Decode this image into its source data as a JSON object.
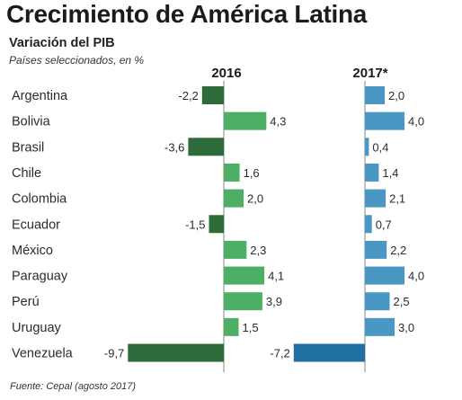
{
  "title": "Crecimiento de América Latina",
  "subtitle": "Variación del PIB",
  "unit_note": "Países seleccionados, en %",
  "source": "Fuente: Cepal (agosto 2017)",
  "chart_data": {
    "type": "bar",
    "orientation": "horizontal",
    "categories": [
      "Argentina",
      "Bolivia",
      "Brasil",
      "Chile",
      "Colombia",
      "Ecuador",
      "México",
      "Paraguay",
      "Perú",
      "Uruguay",
      "Venezuela"
    ],
    "series": [
      {
        "name": "2016",
        "values": [
          -2.2,
          4.3,
          -3.6,
          1.6,
          2.0,
          -1.5,
          2.3,
          4.1,
          3.9,
          1.5,
          -9.7
        ],
        "labels": [
          "-2,2",
          "4,3",
          "-3,6",
          "1,6",
          "2,0",
          "-1,5",
          "2,3",
          "4,1",
          "3,9",
          "1,5",
          "-9,7"
        ],
        "color_positive": "#4caf63",
        "color_negative": "#2e6b3a"
      },
      {
        "name": "2017*",
        "values": [
          2.0,
          4.0,
          0.4,
          1.4,
          2.1,
          0.7,
          2.2,
          4.0,
          2.5,
          3.0,
          -7.2
        ],
        "labels": [
          "2,0",
          "4,0",
          "0,4",
          "1,4",
          "2,1",
          "0,7",
          "2,2",
          "4,0",
          "2,5",
          "3,0",
          "-7,2"
        ],
        "color_positive": "#4a97c4",
        "color_negative": "#1f6fa3"
      }
    ],
    "grid": false,
    "legend": "none"
  }
}
